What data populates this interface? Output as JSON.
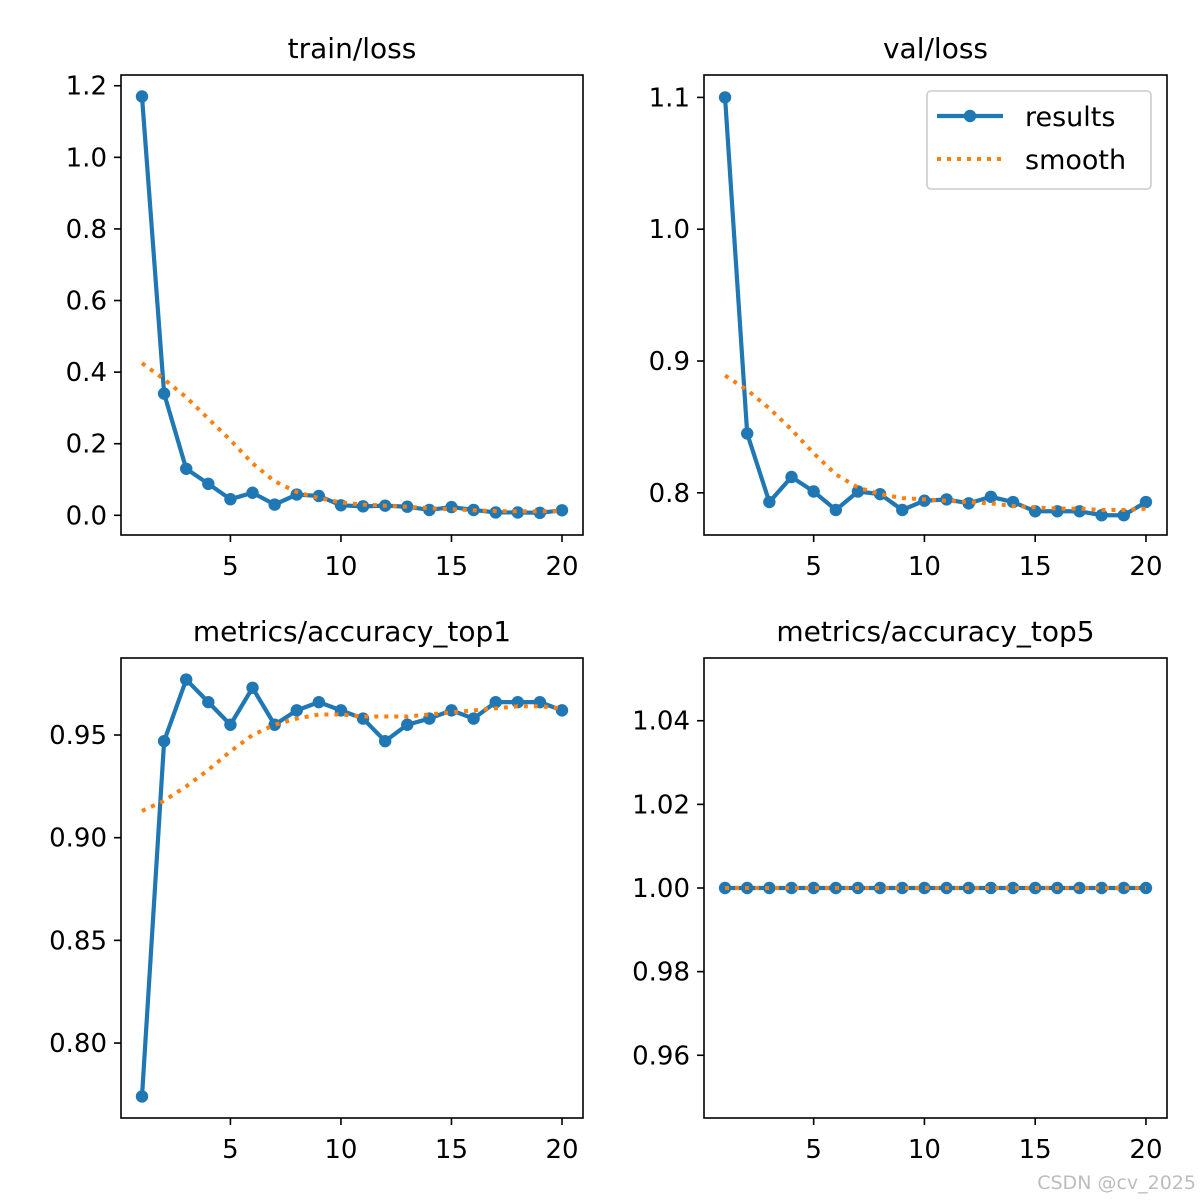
{
  "chart_data": [
    {
      "type": "line",
      "title": "train/loss",
      "x": [
        1,
        2,
        3,
        4,
        5,
        6,
        7,
        8,
        9,
        10,
        11,
        12,
        13,
        14,
        15,
        16,
        17,
        18,
        19,
        20
      ],
      "xticks": [
        5,
        10,
        15,
        20
      ],
      "xlim": [
        0.05,
        20.95
      ],
      "ylim": [
        -0.055,
        1.23
      ],
      "yticks": [
        0.0,
        0.2,
        0.4,
        0.6,
        0.8,
        1.0,
        1.2
      ],
      "ytick_labels": [
        "0.0",
        "0.2",
        "0.4",
        "0.6",
        "0.8",
        "1.0",
        "1.2"
      ],
      "series": [
        {
          "name": "results",
          "style": "solid-markers",
          "color": "#1f77b4",
          "values": [
            1.17,
            0.34,
            0.13,
            0.088,
            0.045,
            0.063,
            0.03,
            0.058,
            0.054,
            0.028,
            0.025,
            0.027,
            0.024,
            0.015,
            0.023,
            0.015,
            0.008,
            0.008,
            0.007,
            0.014
          ]
        },
        {
          "name": "smooth",
          "style": "dotted",
          "color": "#ff7f0e",
          "values": [
            0.425,
            0.38,
            0.33,
            0.27,
            0.21,
            0.145,
            0.095,
            0.065,
            0.048,
            0.036,
            0.03,
            0.027,
            0.024,
            0.02,
            0.017,
            0.014,
            0.012,
            0.011,
            0.011,
            0.012
          ]
        }
      ]
    },
    {
      "type": "line",
      "title": "val/loss",
      "x": [
        1,
        2,
        3,
        4,
        5,
        6,
        7,
        8,
        9,
        10,
        11,
        12,
        13,
        14,
        15,
        16,
        17,
        18,
        19,
        20
      ],
      "xticks": [
        5,
        10,
        15,
        20
      ],
      "xlim": [
        0.05,
        20.95
      ],
      "ylim": [
        0.768,
        1.117
      ],
      "yticks": [
        0.8,
        0.9,
        1.0,
        1.1
      ],
      "ytick_labels": [
        "0.8",
        "0.9",
        "1.0",
        "1.1"
      ],
      "legend": {
        "position": "top-right",
        "entries": [
          "results",
          "smooth"
        ]
      },
      "series": [
        {
          "name": "results",
          "style": "solid-markers",
          "color": "#1f77b4",
          "values": [
            1.1,
            0.845,
            0.793,
            0.812,
            0.801,
            0.787,
            0.801,
            0.799,
            0.787,
            0.794,
            0.795,
            0.792,
            0.797,
            0.793,
            0.786,
            0.786,
            0.786,
            0.783,
            0.783,
            0.793
          ]
        },
        {
          "name": "smooth",
          "style": "dotted",
          "color": "#ff7f0e",
          "values": [
            0.889,
            0.878,
            0.864,
            0.848,
            0.83,
            0.814,
            0.804,
            0.799,
            0.796,
            0.795,
            0.794,
            0.793,
            0.792,
            0.79,
            0.789,
            0.788,
            0.788,
            0.787,
            0.787,
            0.788
          ]
        }
      ]
    },
    {
      "type": "line",
      "title": "metrics/accuracy_top1",
      "x": [
        1,
        2,
        3,
        4,
        5,
        6,
        7,
        8,
        9,
        10,
        11,
        12,
        13,
        14,
        15,
        16,
        17,
        18,
        19,
        20
      ],
      "xticks": [
        5,
        10,
        15,
        20
      ],
      "xlim": [
        0.05,
        20.95
      ],
      "ylim": [
        0.7635,
        0.9875
      ],
      "yticks": [
        0.8,
        0.85,
        0.9,
        0.95
      ],
      "ytick_labels": [
        "0.80",
        "0.85",
        "0.90",
        "0.95"
      ],
      "series": [
        {
          "name": "results",
          "style": "solid-markers",
          "color": "#1f77b4",
          "values": [
            0.774,
            0.947,
            0.977,
            0.966,
            0.955,
            0.973,
            0.955,
            0.962,
            0.966,
            0.962,
            0.958,
            0.947,
            0.955,
            0.958,
            0.962,
            0.958,
            0.966,
            0.966,
            0.966,
            0.962
          ]
        },
        {
          "name": "smooth",
          "style": "dotted",
          "color": "#ff7f0e",
          "values": [
            0.913,
            0.918,
            0.925,
            0.933,
            0.942,
            0.95,
            0.955,
            0.958,
            0.96,
            0.96,
            0.959,
            0.959,
            0.959,
            0.96,
            0.961,
            0.962,
            0.963,
            0.964,
            0.964,
            0.963
          ]
        }
      ]
    },
    {
      "type": "line",
      "title": "metrics/accuracy_top5",
      "x": [
        1,
        2,
        3,
        4,
        5,
        6,
        7,
        8,
        9,
        10,
        11,
        12,
        13,
        14,
        15,
        16,
        17,
        18,
        19,
        20
      ],
      "xticks": [
        5,
        10,
        15,
        20
      ],
      "xlim": [
        0.05,
        20.95
      ],
      "ylim": [
        0.945,
        1.055
      ],
      "yticks": [
        0.96,
        0.98,
        1.0,
        1.02,
        1.04
      ],
      "ytick_labels": [
        "0.96",
        "0.98",
        "1.00",
        "1.02",
        "1.04"
      ],
      "series": [
        {
          "name": "results",
          "style": "solid-markers",
          "color": "#1f77b4",
          "values": [
            1.0,
            1.0,
            1.0,
            1.0,
            1.0,
            1.0,
            1.0,
            1.0,
            1.0,
            1.0,
            1.0,
            1.0,
            1.0,
            1.0,
            1.0,
            1.0,
            1.0,
            1.0,
            1.0,
            1.0
          ]
        },
        {
          "name": "smooth",
          "style": "dotted",
          "color": "#ff7f0e",
          "values": [
            1.0,
            1.0,
            1.0,
            1.0,
            1.0,
            1.0,
            1.0,
            1.0,
            1.0,
            1.0,
            1.0,
            1.0,
            1.0,
            1.0,
            1.0,
            1.0,
            1.0,
            1.0,
            1.0,
            1.0
          ]
        }
      ]
    }
  ],
  "watermark": "CSDN @cv_2025"
}
